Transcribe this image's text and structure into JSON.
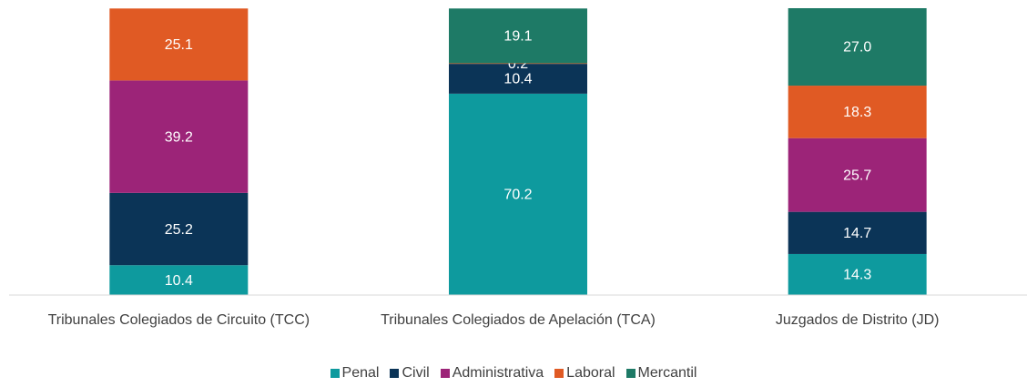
{
  "chart_data": {
    "type": "stacked_bar",
    "categories": [
      "Tribunales Colegiados de Circuito (TCC)",
      "Tribunales Colegiados de Apelación (TCA)",
      "Juzgados de Distrito (JD)"
    ],
    "series": [
      {
        "name": "Penal",
        "color": "#0e9a9e",
        "values": [
          10.4,
          70.2,
          14.3
        ]
      },
      {
        "name": "Civil",
        "color": "#0b3457",
        "values": [
          25.2,
          10.4,
          14.7
        ]
      },
      {
        "name": "Administrativa",
        "color": "#9c2478",
        "values": [
          39.2,
          null,
          25.7
        ]
      },
      {
        "name": "Laboral",
        "color": "#e05a24",
        "values": [
          25.1,
          0.2,
          18.3
        ]
      },
      {
        "name": "Mercantil",
        "color": "#1e7a66",
        "values": [
          null,
          19.1,
          27.0
        ],
        "value_labels": [
          null,
          "19.1",
          "27.0"
        ]
      }
    ],
    "ylim": [
      0,
      100
    ],
    "legend": "bottom"
  }
}
